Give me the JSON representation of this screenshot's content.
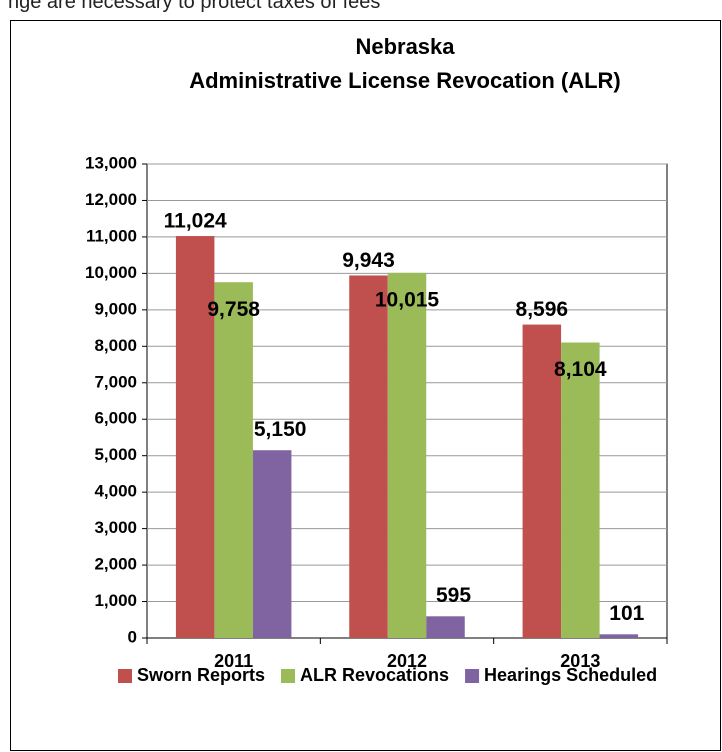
{
  "caption": "nge are necessary to protect taxes of fees",
  "chart_data": {
    "type": "bar",
    "title": "Nebraska",
    "subtitle": "Administrative License Revocation (ALR)",
    "categories": [
      "2011",
      "2012",
      "2013"
    ],
    "series": [
      {
        "name": "Sworn Reports",
        "color": "#c0504d",
        "values": [
          11024,
          9943,
          8596
        ],
        "value_labels": [
          "11,024",
          "9,943",
          "8,596"
        ]
      },
      {
        "name": "ALR Revocations",
        "color": "#9bbb59",
        "values": [
          9758,
          10015,
          8104
        ],
        "value_labels": [
          "9,758",
          "10,015",
          "8,104"
        ]
      },
      {
        "name": "Hearings Scheduled",
        "color": "#8064a2",
        "values": [
          5150,
          595,
          101
        ],
        "value_labels": [
          "5,150",
          "595",
          "101"
        ]
      }
    ],
    "ylim": [
      0,
      13000
    ],
    "yticks": [
      0,
      {
        "value": 1000,
        "label": "1,000"
      },
      {
        "value": 2000,
        "label": "2,000"
      },
      {
        "value": 3000,
        "label": "3,000"
      },
      {
        "value": 4000,
        "label": "4,000"
      },
      {
        "value": 5000,
        "label": "5,000"
      },
      {
        "value": 6000,
        "label": "6,000"
      },
      {
        "value": 7000,
        "label": "7,000"
      },
      {
        "value": 8000,
        "label": "8,000"
      },
      {
        "value": 9000,
        "label": "9,000"
      },
      {
        "value": 10000,
        "label": "10,000"
      },
      {
        "value": 11000,
        "label": "11,000"
      },
      {
        "value": 12000,
        "label": "12,000"
      },
      {
        "value": 13000,
        "label": "13,000"
      }
    ],
    "grid": true,
    "legend": "bottom"
  }
}
